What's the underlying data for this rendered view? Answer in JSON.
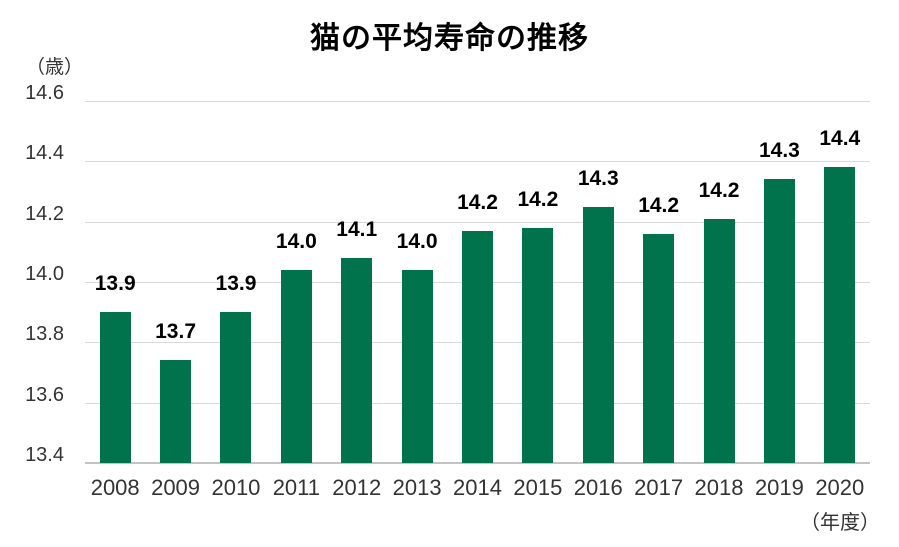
{
  "title": "猫の平均寿命の推移",
  "y_axis_unit": "（歳）",
  "x_axis_unit": "（年度）",
  "colors": {
    "bar": "#00734c",
    "gridline": "#d9d9d9",
    "axis_line": "#c3c3c3",
    "tick_text": "#333333",
    "label_text": "#000000"
  },
  "chart_data": {
    "type": "bar",
    "title": "猫の平均寿命の推移",
    "xlabel": "（年度）",
    "ylabel": "（歳）",
    "categories": [
      "2008",
      "2009",
      "2010",
      "2011",
      "2012",
      "2013",
      "2014",
      "2015",
      "2016",
      "2017",
      "2018",
      "2019",
      "2020"
    ],
    "values": [
      13.9,
      13.7,
      13.9,
      14.0,
      14.1,
      14.0,
      14.2,
      14.2,
      14.3,
      14.2,
      14.2,
      14.3,
      14.4
    ],
    "bar_value_labels": [
      "13.9",
      "13.7",
      "13.9",
      "14.0",
      "14.1",
      "14.0",
      "14.2",
      "14.2",
      "14.3",
      "14.2",
      "14.2",
      "14.3",
      "14.4"
    ],
    "bar_heights_estimated": [
      13.9,
      13.74,
      13.9,
      14.04,
      14.08,
      14.04,
      14.17,
      14.18,
      14.25,
      14.16,
      14.21,
      14.34,
      14.38
    ],
    "ylim": [
      13.4,
      14.6
    ],
    "yticks": [
      "14.6",
      "14.4",
      "14.2",
      "14.0",
      "13.8",
      "13.6",
      "13.4"
    ],
    "grid": true,
    "legend": false
  }
}
